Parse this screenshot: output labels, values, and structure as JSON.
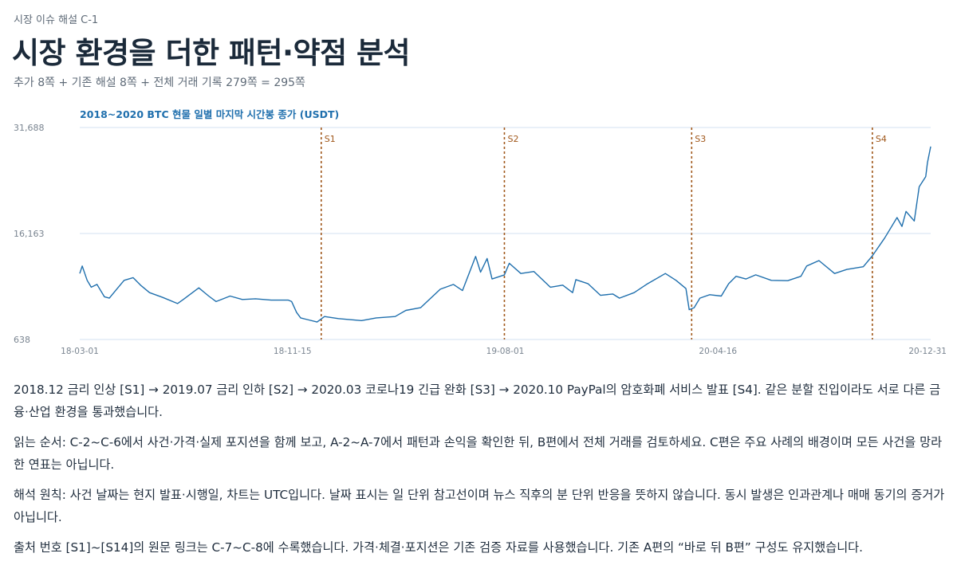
{
  "header": {
    "kicker": "시장 이슈 해설  C-1",
    "title": "시장 환경을 더한 패턴·약점 분석",
    "subtitle": "추가 8쪽 + 기존 해설 8쪽 + 전체 거래 기록 279쪽 = 295쪽"
  },
  "colors": {
    "accent": "#1f6fad",
    "event_line": "#a0571a",
    "grid": "#d3e2f2",
    "text": "#1f2d3d"
  },
  "chart_data": {
    "type": "line",
    "title": "2018~2020 BTC 현물 일별 마지막 시간봉 종가 (USDT)",
    "x_start": "2018-03-01",
    "x_end": "2020-12-31",
    "x_ticks": [
      {
        "date": "2018-03-01",
        "label": "18-03-01"
      },
      {
        "date": "2018-11-15",
        "label": "18-11-15"
      },
      {
        "date": "2019-08-01",
        "label": "19-08-01"
      },
      {
        "date": "2020-04-16",
        "label": "20-04-16"
      },
      {
        "date": "2020-12-31",
        "label": "20-12-31"
      }
    ],
    "y_ticks": [
      {
        "value": 31688,
        "label": "31,688"
      },
      {
        "value": 16163,
        "label": "16,163"
      },
      {
        "value": 638,
        "label": "638"
      }
    ],
    "ylim": [
      638,
      31688
    ],
    "grid": true,
    "events": [
      {
        "label": "S1",
        "date": "2018-12-20"
      },
      {
        "label": "S2",
        "date": "2019-07-31"
      },
      {
        "label": "S3",
        "date": "2020-03-15"
      },
      {
        "label": "S4",
        "date": "2020-10-21"
      }
    ],
    "series": [
      {
        "color": "#1f6fad",
        "points": [
          [
            "2018-03-01",
            10300
          ],
          [
            "2018-03-04",
            11400
          ],
          [
            "2018-03-10",
            9300
          ],
          [
            "2018-03-15",
            8300
          ],
          [
            "2018-03-22",
            8700
          ],
          [
            "2018-03-31",
            6900
          ],
          [
            "2018-04-06",
            6700
          ],
          [
            "2018-04-15",
            8000
          ],
          [
            "2018-04-24",
            9300
          ],
          [
            "2018-05-05",
            9700
          ],
          [
            "2018-05-14",
            8600
          ],
          [
            "2018-05-25",
            7500
          ],
          [
            "2018-06-10",
            6800
          ],
          [
            "2018-06-28",
            5900
          ],
          [
            "2018-07-05",
            6500
          ],
          [
            "2018-07-24",
            8200
          ],
          [
            "2018-08-05",
            7000
          ],
          [
            "2018-08-14",
            6200
          ],
          [
            "2018-08-31",
            7000
          ],
          [
            "2018-09-15",
            6500
          ],
          [
            "2018-10-01",
            6600
          ],
          [
            "2018-10-20",
            6400
          ],
          [
            "2018-11-10",
            6400
          ],
          [
            "2018-11-14",
            6200
          ],
          [
            "2018-11-20",
            4600
          ],
          [
            "2018-11-25",
            3800
          ],
          [
            "2018-12-05",
            3500
          ],
          [
            "2018-12-15",
            3200
          ],
          [
            "2018-12-24",
            4000
          ],
          [
            "2019-01-10",
            3700
          ],
          [
            "2019-02-07",
            3400
          ],
          [
            "2019-02-25",
            3800
          ],
          [
            "2019-03-20",
            4000
          ],
          [
            "2019-04-02",
            4900
          ],
          [
            "2019-04-20",
            5300
          ],
          [
            "2019-05-14",
            8000
          ],
          [
            "2019-05-30",
            8700
          ],
          [
            "2019-06-10",
            7800
          ],
          [
            "2019-06-26",
            12800
          ],
          [
            "2019-07-02",
            10500
          ],
          [
            "2019-07-10",
            12500
          ],
          [
            "2019-07-16",
            9500
          ],
          [
            "2019-07-31",
            10100
          ],
          [
            "2019-08-06",
            11800
          ],
          [
            "2019-08-20",
            10300
          ],
          [
            "2019-09-05",
            10600
          ],
          [
            "2019-09-25",
            8300
          ],
          [
            "2019-10-10",
            8600
          ],
          [
            "2019-10-22",
            7500
          ],
          [
            "2019-10-26",
            9400
          ],
          [
            "2019-11-10",
            8800
          ],
          [
            "2019-11-25",
            7100
          ],
          [
            "2019-12-10",
            7300
          ],
          [
            "2019-12-18",
            6700
          ],
          [
            "2020-01-05",
            7500
          ],
          [
            "2020-01-20",
            8700
          ],
          [
            "2020-02-12",
            10300
          ],
          [
            "2020-02-25",
            9300
          ],
          [
            "2020-03-08",
            8100
          ],
          [
            "2020-03-12",
            5000
          ],
          [
            "2020-03-18",
            5300
          ],
          [
            "2020-03-25",
            6700
          ],
          [
            "2020-04-06",
            7200
          ],
          [
            "2020-04-20",
            7000
          ],
          [
            "2020-04-29",
            8800
          ],
          [
            "2020-05-08",
            9900
          ],
          [
            "2020-05-20",
            9500
          ],
          [
            "2020-06-01",
            10100
          ],
          [
            "2020-06-20",
            9300
          ],
          [
            "2020-07-10",
            9250
          ],
          [
            "2020-07-26",
            9900
          ],
          [
            "2020-08-02",
            11400
          ],
          [
            "2020-08-17",
            12200
          ],
          [
            "2020-09-05",
            10300
          ],
          [
            "2020-09-20",
            10900
          ],
          [
            "2020-10-10",
            11300
          ],
          [
            "2020-10-21",
            12900
          ],
          [
            "2020-11-05",
            15500
          ],
          [
            "2020-11-20",
            18500
          ],
          [
            "2020-11-26",
            17200
          ],
          [
            "2020-12-01",
            19400
          ],
          [
            "2020-12-11",
            18000
          ],
          [
            "2020-12-17",
            23000
          ],
          [
            "2020-12-25",
            24500
          ],
          [
            "2020-12-27",
            26500
          ],
          [
            "2020-12-31",
            28900
          ]
        ]
      }
    ]
  },
  "paragraphs": {
    "p1": "2018.12 금리 인상 [S1] → 2019.07 금리 인하 [S2] → 2020.03 코로나19 긴급 완화 [S3] → 2020.10 PayPal의 암호화폐 서비스 발표 [S4]. 같은 분할 진입이라도 서로 다른 금융·산업 환경을 통과했습니다.",
    "p2": "읽는 순서: C-2~C-6에서 사건·가격·실제 포지션을 함께 보고, A-2~A-7에서 패턴과 손익을 확인한 뒤, B편에서 전체 거래를 검토하세요. C편은 주요 사례의 배경이며 모든 사건을 망라한 연표는 아닙니다.",
    "p3": "해석 원칙: 사건 날짜는 현지 발표·시행일, 차트는 UTC입니다. 날짜 표시는 일 단위 참고선이며 뉴스 직후의 분 단위 반응을 뜻하지 않습니다. 동시 발생은 인과관계나 매매 동기의 증거가 아닙니다.",
    "p4": "출처 번호 [S1]~[S14]의 원문 링크는 C-7~C-8에 수록했습니다. 가격·체결·포지션은 기존 검증 자료를 사용했습니다. 기존 A편의 “바로 뒤 B편” 구성도 유지했습니다."
  }
}
